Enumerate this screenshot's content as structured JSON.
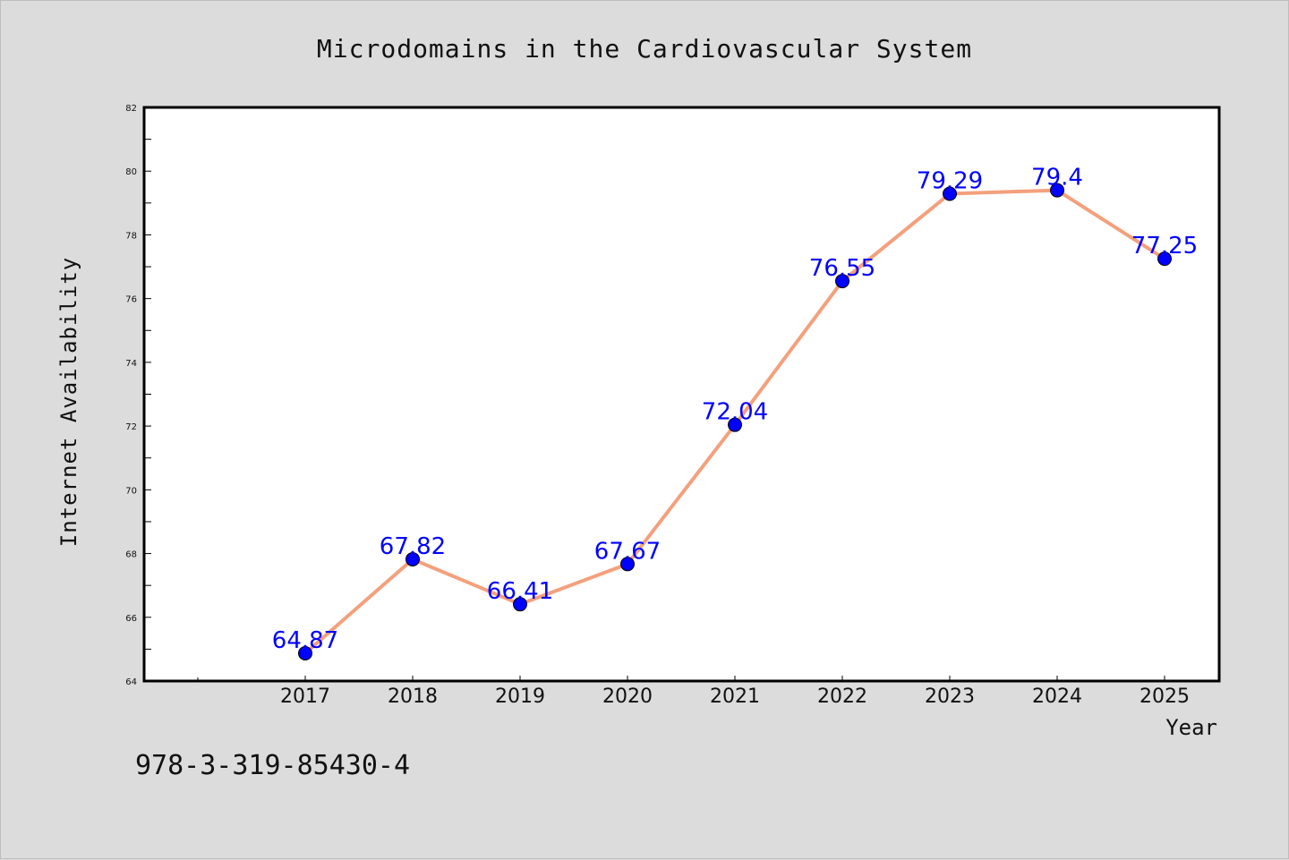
{
  "footer": {
    "code": "978-3-319-85430-4"
  },
  "chart_data": {
    "type": "line",
    "title": "Microdomains in the Cardiovascular System",
    "xlabel": "Year",
    "ylabel": "Internet Availability",
    "categories": [
      "2017",
      "2018",
      "2019",
      "2020",
      "2021",
      "2022",
      "2023",
      "2024",
      "2025"
    ],
    "series": [
      {
        "values": [
          64.87,
          67.82,
          66.41,
          67.67,
          72.04,
          76.55,
          79.29,
          79.4,
          77.25
        ],
        "labels": [
          "64.87",
          "67.82",
          "66.41",
          "67.67",
          "72.04",
          "76.55",
          "79.29",
          "79.4",
          "77.25"
        ],
        "line_color": "#f4a07c",
        "marker_color": "#0000ff"
      }
    ],
    "ylim": [
      64,
      82
    ],
    "yticks": [
      "64",
      "66",
      "68",
      "70",
      "72",
      "74",
      "76",
      "78",
      "80",
      "82"
    ],
    "grid": false,
    "legend": "none"
  }
}
